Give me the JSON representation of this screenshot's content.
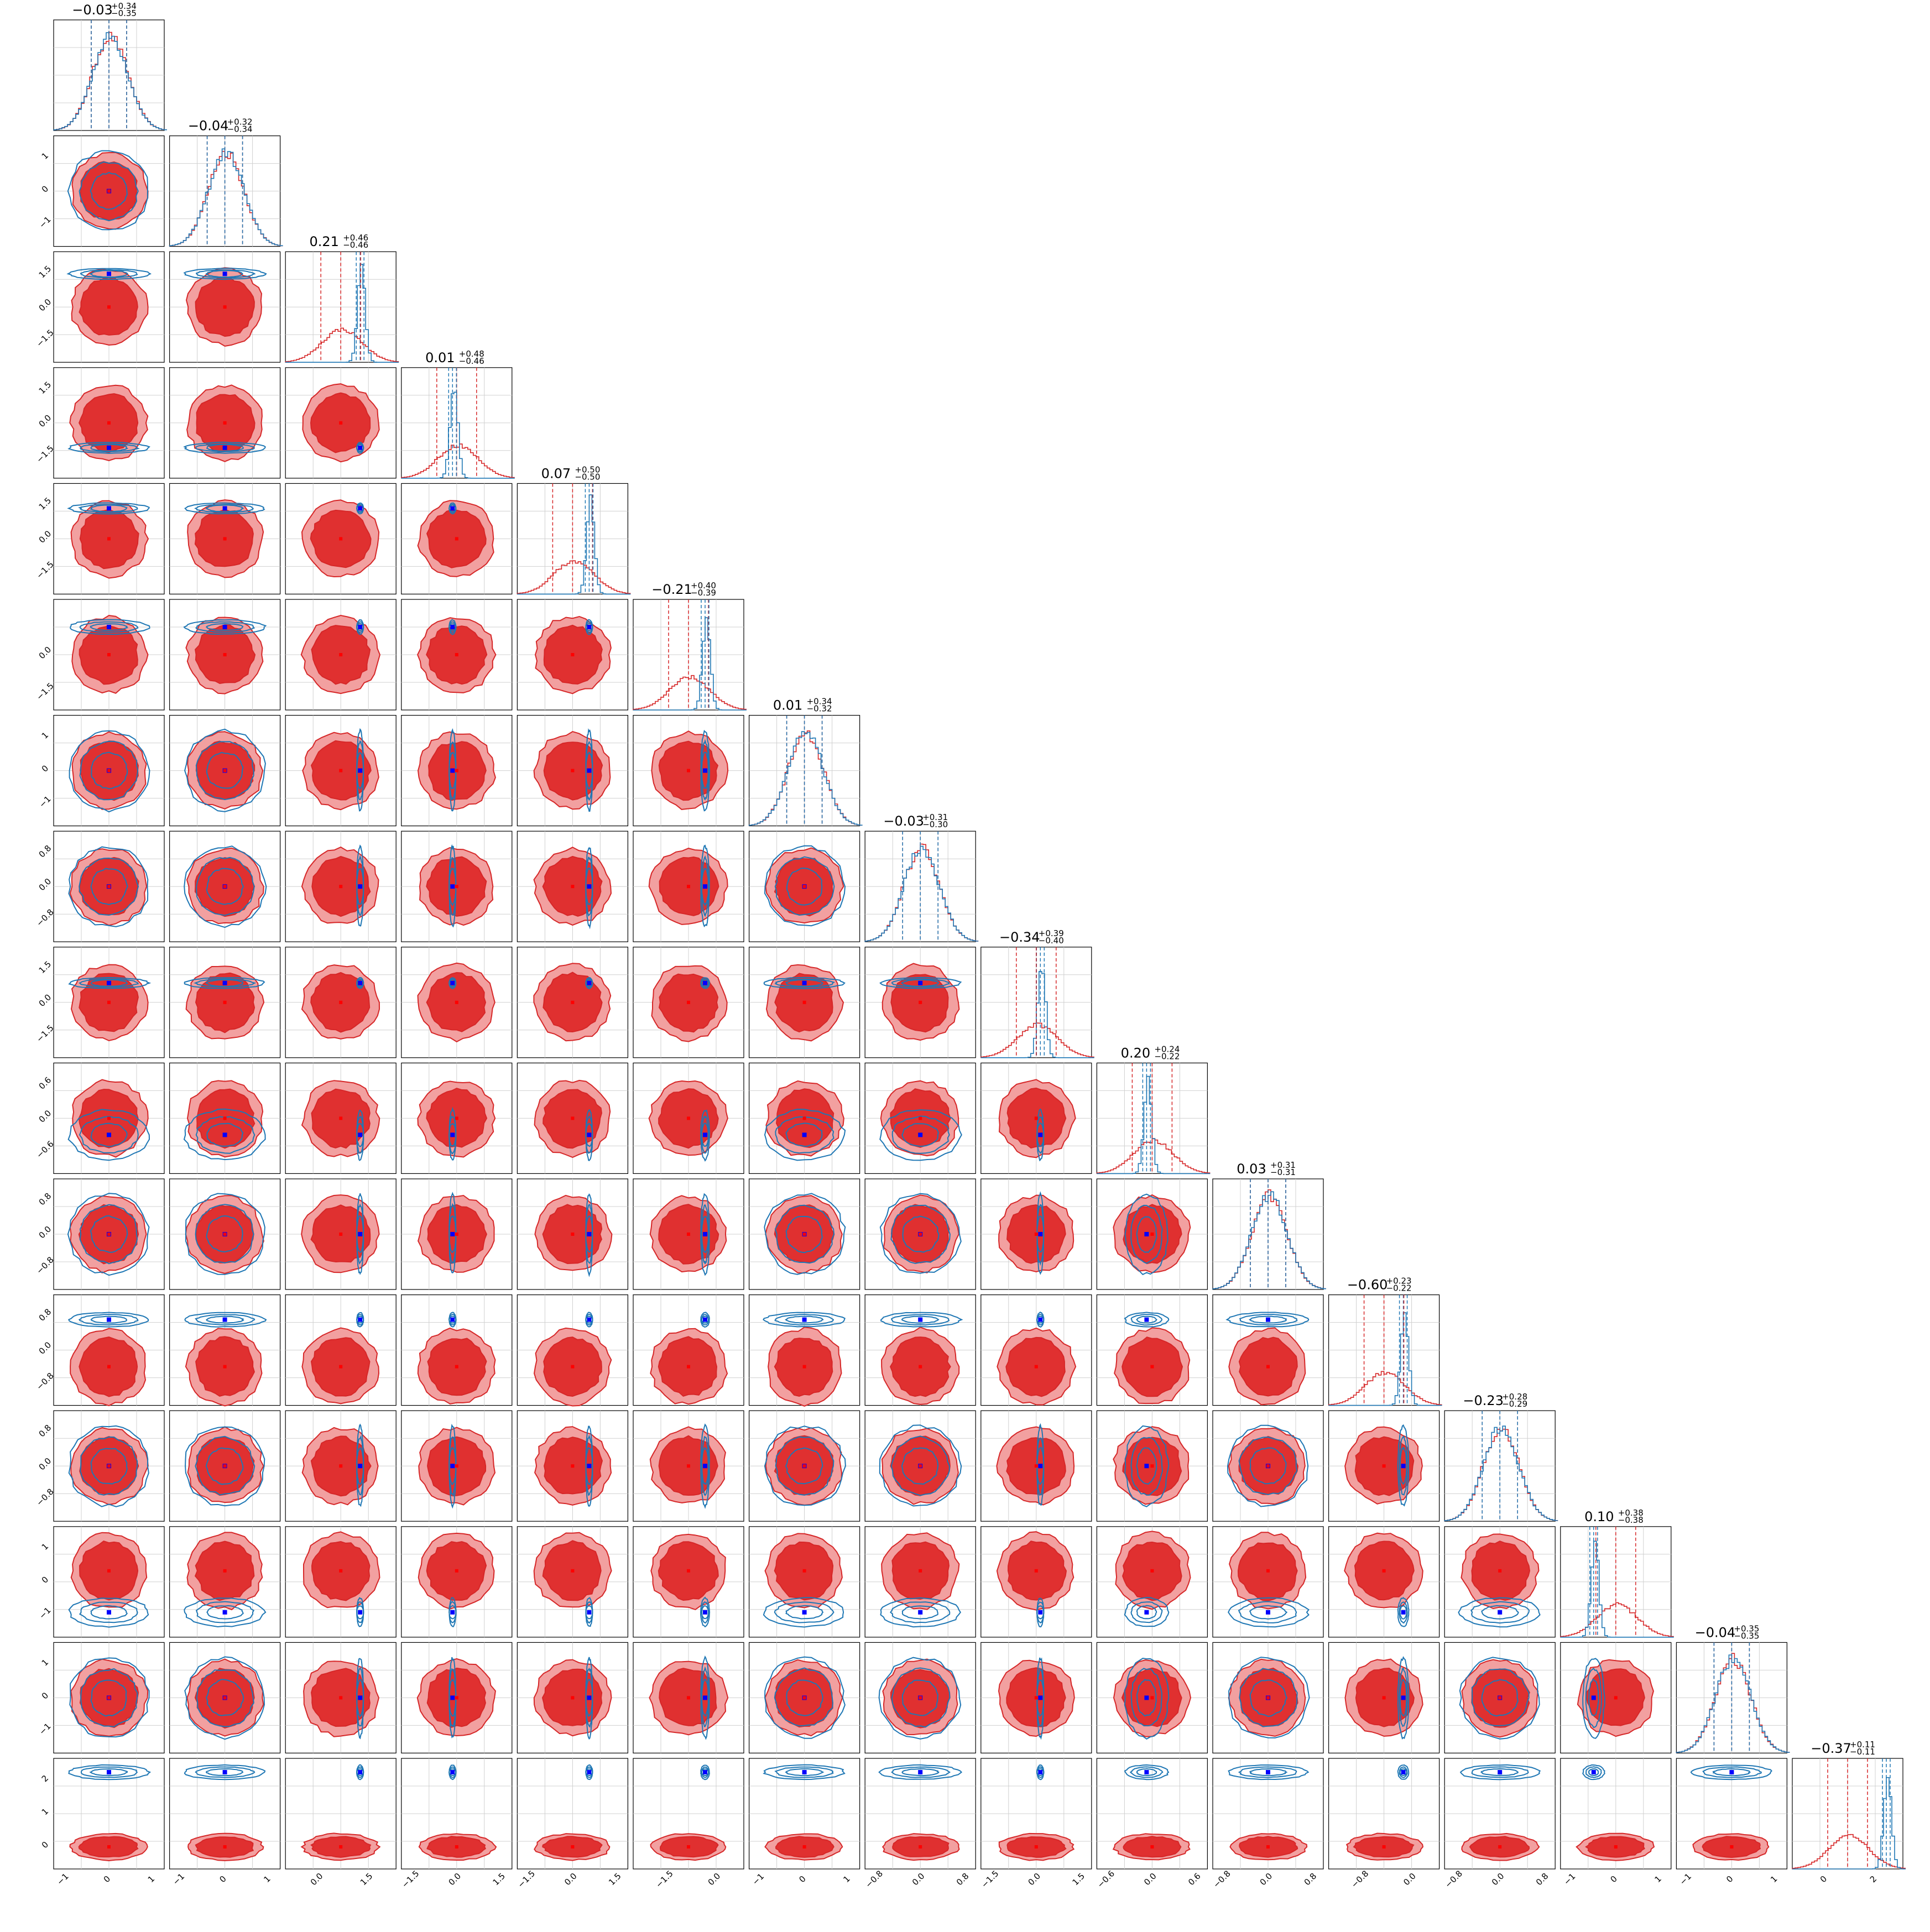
{
  "chart_data": {
    "type": "corner",
    "n_params": 16,
    "colors": {
      "posterior_a": "#d62728",
      "posterior_a_fill_outer": "#f2a0a0",
      "posterior_a_fill_inner": "#e03030",
      "posterior_b": "#1f77b4",
      "marker": "#0000ff",
      "marker_alt": "#ff0000",
      "grid": "#d0d0d0"
    },
    "titles": [
      {
        "median": "−0.03",
        "upper": "+0.34",
        "lower": "−0.35"
      },
      {
        "median": "−0.04",
        "upper": "+0.32",
        "lower": "−0.34"
      },
      {
        "median": "0.21",
        "upper": "+0.46",
        "lower": "−0.46"
      },
      {
        "median": "0.01",
        "upper": "+0.48",
        "lower": "−0.46"
      },
      {
        "median": "0.07",
        "upper": "+0.50",
        "lower": "−0.50"
      },
      {
        "median": "−0.21",
        "upper": "+0.40",
        "lower": "−0.39"
      },
      {
        "median": "0.01",
        "upper": "+0.34",
        "lower": "−0.32"
      },
      {
        "median": "−0.03",
        "upper": "+0.31",
        "lower": "−0.30"
      },
      {
        "median": "−0.34",
        "upper": "+0.39",
        "lower": "−0.40"
      },
      {
        "median": "0.20",
        "upper": "+0.24",
        "lower": "−0.22"
      },
      {
        "median": "0.03",
        "upper": "+0.31",
        "lower": "−0.31"
      },
      {
        "median": "−0.60",
        "upper": "+0.23",
        "lower": "−0.22"
      },
      {
        "median": "−0.23",
        "upper": "+0.28",
        "lower": "−0.29"
      },
      {
        "median": "0.10",
        "upper": "+0.38",
        "lower": "−0.38"
      },
      {
        "median": "−0.04",
        "upper": "+0.35",
        "lower": "−0.35"
      },
      {
        "median": "−0.37",
        "upper": "+0.11",
        "lower": "−0.11"
      }
    ],
    "y_ticks": [
      null,
      [
        "1",
        "0",
        "−1"
      ],
      [
        "1.5",
        "0.0",
        "−1.5"
      ],
      [
        "1.5",
        "0.0",
        "−1.5"
      ],
      [
        "1.5",
        "0.0",
        "−1.5"
      ],
      [
        "0.0",
        "−1.5"
      ],
      [
        "1",
        "0",
        "−1"
      ],
      [
        "0.8",
        "0.0",
        "−0.8"
      ],
      [
        "1.5",
        "0.0",
        "−1.5"
      ],
      [
        "0.6",
        "0.0",
        "−0.6"
      ],
      [
        "0.8",
        "0.0",
        "−0.8"
      ],
      [
        "0.8",
        "0.0",
        "−0.8"
      ],
      [
        "0.8",
        "0.0",
        "−0.8"
      ],
      [
        "1",
        "0",
        "−1"
      ],
      [
        "1",
        "0",
        "−1"
      ],
      [
        "2",
        "1",
        "0"
      ]
    ],
    "x_ticks": [
      [
        "−1",
        "0",
        "1"
      ],
      [
        "−1",
        "0",
        "1"
      ],
      [
        "0.0",
        "1.5"
      ],
      [
        "−1.5",
        "0.0",
        "1.5"
      ],
      [
        "−1.5",
        "0.0",
        "1.5"
      ],
      [
        "−1.5",
        "0.0"
      ],
      [
        "−1",
        "0",
        "1"
      ],
      [
        "−0.8",
        "0.0",
        "0.8"
      ],
      [
        "−1.5",
        "0.0",
        "1.5"
      ],
      [
        "−0.6",
        "0.0",
        "0.6"
      ],
      [
        "−0.8",
        "0.0",
        "0.8"
      ],
      [
        "−0.8",
        "0.0"
      ],
      [
        "−0.8",
        "0.0",
        "0.8"
      ],
      [
        "−1",
        "0",
        "1"
      ],
      [
        "−1",
        "0",
        "1"
      ],
      [
        "0",
        "2"
      ]
    ],
    "posterior_b_offset": [
      [
        0,
        0
      ],
      [
        0,
        0
      ],
      [
        0.7,
        0.6
      ],
      [
        -0.15,
        -0.45
      ],
      [
        0.6,
        0.55
      ],
      [
        0.6,
        0.5
      ],
      [
        0,
        0
      ],
      [
        0,
        0
      ],
      [
        0.15,
        0.35
      ],
      [
        -0.2,
        -0.3
      ],
      [
        0,
        0
      ],
      [
        0.7,
        0.55
      ],
      [
        0,
        0
      ],
      [
        -0.8,
        -0.55
      ],
      [
        0,
        0
      ],
      [
        1.4,
        0.75
      ]
    ],
    "posterior_b_width": [
      1.0,
      1.0,
      0.08,
      0.08,
      0.08,
      0.12,
      1.0,
      1.0,
      0.08,
      0.6,
      1.0,
      0.15,
      1.0,
      0.3,
      1.0,
      0.15
    ],
    "posterior_b_height": [
      1.0,
      1.0,
      0.15,
      0.15,
      0.15,
      0.2,
      1.0,
      1.0,
      0.15,
      0.7,
      1.0,
      0.2,
      1.0,
      0.4,
      1.0,
      0.2
    ]
  }
}
